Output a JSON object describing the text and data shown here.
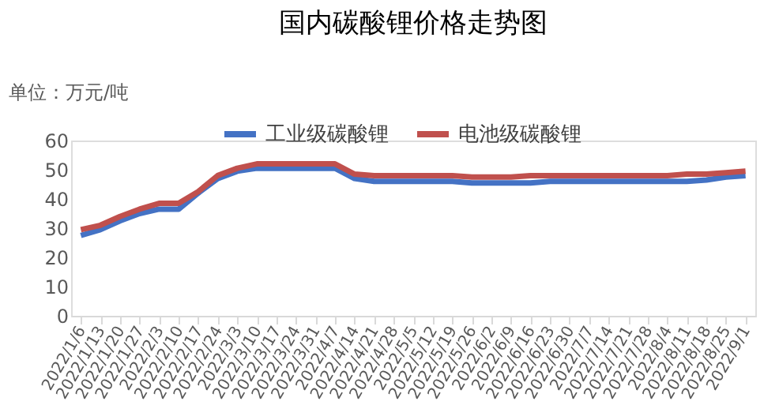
{
  "chart_data": {
    "type": "line",
    "title": "国内碳酸锂价格走势图",
    "ylabel": "单位：万元/吨",
    "categories": [
      "2022/1/6",
      "2022/1/13",
      "2022/1/20",
      "2022/1/27",
      "2022/2/3",
      "2022/2/10",
      "2022/2/17",
      "2022/2/24",
      "2022/3/3",
      "2022/3/10",
      "2022/3/17",
      "2022/3/24",
      "2022/3/31",
      "2022/4/7",
      "2022/4/14",
      "2022/4/21",
      "2022/4/28",
      "2022/5/5",
      "2022/5/12",
      "2022/5/19",
      "2022/5/26",
      "2022/6/2",
      "2022/6/9",
      "2022/6/16",
      "2022/6/23",
      "2022/6/30",
      "2022/7/7",
      "2022/7/14",
      "2022/7/21",
      "2022/7/28",
      "2022/8/4",
      "2022/8/11",
      "2022/8/18",
      "2022/8/25",
      "2022/9/1"
    ],
    "series": [
      {
        "name": "工业级碳酸锂",
        "color": "#4472c4",
        "values": [
          27.5,
          29.5,
          32.5,
          35,
          36.5,
          36.5,
          42,
          47,
          49.5,
          50.5,
          50.5,
          50.5,
          50.5,
          50.5,
          47,
          46,
          46,
          46,
          46,
          46,
          45.5,
          45.5,
          45.5,
          45.5,
          46,
          46,
          46,
          46,
          46,
          46,
          46,
          46,
          46.5,
          47.5,
          48
        ]
      },
      {
        "name": "电池级碳酸锂",
        "color": "#c0504d",
        "values": [
          29.5,
          31,
          34,
          36.5,
          38.5,
          38.5,
          42.5,
          48,
          50.5,
          52,
          52,
          52,
          52,
          52,
          48.5,
          48,
          48,
          48,
          48,
          48,
          47.5,
          47.5,
          47.5,
          48,
          48,
          48,
          48,
          48,
          48,
          48,
          48,
          48.5,
          48.5,
          49,
          49.5
        ]
      }
    ],
    "ylim": [
      0,
      60
    ],
    "yticks": [
      0,
      10,
      20,
      30,
      40,
      50,
      60
    ],
    "grid": false,
    "legend": "top",
    "marker": "none",
    "line_style": "solid"
  }
}
